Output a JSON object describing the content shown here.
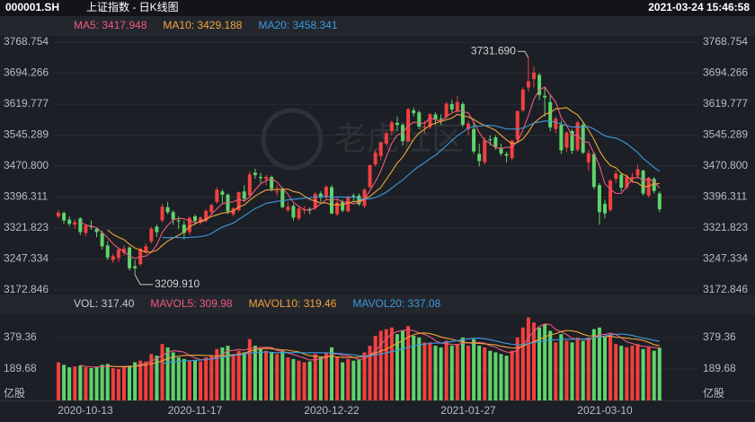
{
  "header": {
    "symbol": "000001.SH",
    "title": "上证指数 - 日K线图",
    "datetime": "2021-03-24 15:46:58"
  },
  "watermark": "老虎社区",
  "chart_data": [
    {
      "type": "candlestick",
      "up_color": "#f2403f",
      "down_color": "#5fd36c",
      "grid": true,
      "ylim": [
        3162,
        3784
      ],
      "yticks": [
        3768.754,
        3694.266,
        3619.777,
        3545.289,
        {
          "value": 3470.8,
          "label": "3470.800"
        },
        3396.311,
        3321.823,
        3247.334,
        3172.846
      ],
      "indicators": [
        {
          "label": "MA5: 3417.948",
          "period": 5,
          "color": "#ee5a7c"
        },
        {
          "label": "MA10: 3429.188",
          "period": 10,
          "color": "#f0a43a"
        },
        {
          "label": "MA20: 3458.341",
          "period": 20,
          "color": "#3d9be0"
        }
      ],
      "high_label": "3731.690",
      "low_label": "3209.910",
      "open": [
        3350,
        3358,
        3342,
        3330,
        3345,
        3310,
        3326,
        3320,
        3310,
        3280,
        3245,
        3250,
        3262,
        3275,
        3230,
        3235,
        3265,
        3290,
        3325,
        3340,
        3372,
        3360,
        3340,
        3330,
        3312,
        3350,
        3335,
        3340,
        3360,
        3385,
        3410,
        3402,
        3355,
        3365,
        3410,
        3400,
        3455,
        3445,
        3440,
        3445,
        3410,
        3415,
        3365,
        3375,
        3345,
        3365,
        3368,
        3370,
        3405,
        3395,
        3420,
        3355,
        3385,
        3362,
        3400,
        3400,
        3375,
        3420,
        3475,
        3495,
        3525,
        3555,
        3575,
        3570,
        3530,
        3605,
        3600,
        3565,
        3565,
        3595,
        3585,
        3590,
        3620,
        3605,
        3620,
        3560,
        3560,
        3500,
        3480,
        3535,
        3540,
        3515,
        3500,
        3490,
        3535,
        3605,
        3660,
        3680,
        3690,
        3640,
        3625,
        3560,
        3570,
        3515,
        3555,
        3510,
        3570,
        3480,
        3500,
        3425,
        3380,
        3365,
        3440,
        3450,
        3420,
        3440,
        3448,
        3460,
        3400,
        3440,
        3405
      ],
      "high": [
        3365,
        3362,
        3350,
        3342,
        3348,
        3330,
        3340,
        3324,
        3315,
        3290,
        3260,
        3275,
        3280,
        3278,
        3245,
        3275,
        3285,
        3325,
        3330,
        3380,
        3385,
        3365,
        3350,
        3340,
        3350,
        3355,
        3350,
        3368,
        3380,
        3420,
        3415,
        3405,
        3372,
        3410,
        3425,
        3458,
        3465,
        3455,
        3450,
        3448,
        3425,
        3420,
        3385,
        3380,
        3375,
        3375,
        3372,
        3408,
        3410,
        3425,
        3425,
        3390,
        3390,
        3400,
        3405,
        3405,
        3418,
        3475,
        3510,
        3530,
        3555,
        3580,
        3590,
        3575,
        3610,
        3612,
        3605,
        3580,
        3598,
        3600,
        3595,
        3625,
        3630,
        3640,
        3625,
        3580,
        3575,
        3525,
        3540,
        3545,
        3545,
        3525,
        3505,
        3535,
        3605,
        3660,
        3731.69,
        3710,
        3695,
        3660,
        3640,
        3590,
        3580,
        3555,
        3560,
        3580,
        3575,
        3510,
        3505,
        3430,
        3390,
        3440,
        3460,
        3455,
        3450,
        3455,
        3475,
        3462,
        3445,
        3445,
        3410
      ],
      "low": [
        3345,
        3332,
        3326,
        3320,
        3305,
        3302,
        3318,
        3300,
        3270,
        3245,
        3238,
        3240,
        3255,
        3220,
        3209.91,
        3230,
        3260,
        3285,
        3300,
        3335,
        3355,
        3330,
        3320,
        3295,
        3305,
        3330,
        3330,
        3335,
        3355,
        3380,
        3380,
        3355,
        3350,
        3360,
        3385,
        3398,
        3440,
        3430,
        3425,
        3410,
        3400,
        3370,
        3360,
        3340,
        3340,
        3355,
        3355,
        3365,
        3385,
        3390,
        3355,
        3350,
        3360,
        3360,
        3385,
        3375,
        3370,
        3418,
        3470,
        3485,
        3520,
        3545,
        3555,
        3520,
        3528,
        3590,
        3560,
        3550,
        3560,
        3570,
        3570,
        3585,
        3600,
        3600,
        3565,
        3545,
        3500,
        3470,
        3475,
        3520,
        3510,
        3495,
        3480,
        3485,
        3530,
        3600,
        3650,
        3660,
        3630,
        3590,
        3555,
        3550,
        3500,
        3505,
        3500,
        3505,
        3500,
        3460,
        3415,
        3330,
        3345,
        3360,
        3430,
        3410,
        3415,
        3430,
        3440,
        3400,
        3395,
        3405,
        3360
      ],
      "close": [
        3359,
        3340,
        3332,
        3336,
        3312,
        3328,
        3325,
        3312,
        3278,
        3251,
        3254,
        3270,
        3272,
        3225,
        3225,
        3272,
        3278,
        3320,
        3312,
        3373,
        3360,
        3342,
        3338,
        3310,
        3346,
        3339,
        3347,
        3363,
        3377,
        3414,
        3402,
        3362,
        3369,
        3408,
        3392,
        3451,
        3449,
        3442,
        3445,
        3416,
        3410,
        3372,
        3373,
        3347,
        3369,
        3367,
        3366,
        3404,
        3395,
        3421,
        3357,
        3383,
        3364,
        3397,
        3397,
        3379,
        3414,
        3473,
        3503,
        3528,
        3550,
        3576,
        3570,
        3531,
        3608,
        3598,
        3566,
        3566,
        3596,
        3584,
        3584,
        3621,
        3607,
        3625,
        3570,
        3573,
        3506,
        3483,
        3533,
        3534,
        3517,
        3501,
        3496,
        3532,
        3603,
        3655,
        3675,
        3696,
        3642,
        3636,
        3564,
        3585,
        3509,
        3551,
        3508,
        3576,
        3503,
        3502,
        3421,
        3360,
        3357,
        3436,
        3453,
        3419,
        3446,
        3445,
        3463,
        3405,
        3443,
        3411,
        3367
      ]
    },
    {
      "type": "bar",
      "vol_label": "VOL: 317.40",
      "unit": "亿股",
      "ylim": [
        0,
        509
      ],
      "yticks": [
        379.36,
        189.68
      ],
      "indicators": [
        {
          "label": "MAVOL5: 309.98",
          "period": 5,
          "color": "#ee5a7c"
        },
        {
          "label": "MAVOL10: 319.46",
          "period": 10,
          "color": "#f0a43a"
        },
        {
          "label": "MAVOL20: 337.08",
          "period": 20,
          "color": "#3d9be0"
        }
      ],
      "categories": [
        "2020-10-13",
        null,
        null,
        null,
        null,
        null,
        null,
        null,
        null,
        null,
        null,
        null,
        null,
        null,
        null,
        null,
        null,
        null,
        null,
        null,
        null,
        null,
        null,
        null,
        null,
        "2020-11-17",
        null,
        null,
        null,
        null,
        null,
        null,
        null,
        null,
        null,
        null,
        null,
        null,
        null,
        null,
        null,
        null,
        null,
        null,
        null,
        null,
        null,
        null,
        null,
        null,
        "2020-12-22",
        null,
        null,
        null,
        null,
        null,
        null,
        null,
        null,
        null,
        null,
        null,
        null,
        null,
        null,
        null,
        null,
        null,
        null,
        null,
        null,
        null,
        null,
        null,
        null,
        "2021-01-27",
        null,
        null,
        null,
        null,
        null,
        null,
        null,
        null,
        null,
        null,
        null,
        null,
        null,
        null,
        null,
        null,
        null,
        null,
        null,
        null,
        null,
        null,
        null,
        null,
        "2021-03-10",
        null,
        null,
        null,
        null,
        null,
        null,
        null,
        null,
        null,
        null
      ],
      "values": [
        230,
        215,
        200,
        205,
        210,
        200,
        195,
        200,
        215,
        220,
        195,
        190,
        205,
        210,
        230,
        240,
        235,
        280,
        270,
        340,
        320,
        290,
        260,
        250,
        240,
        245,
        235,
        260,
        270,
        310,
        320,
        330,
        280,
        300,
        290,
        370,
        330,
        310,
        300,
        290,
        280,
        300,
        260,
        250,
        240,
        230,
        235,
        280,
        260,
        290,
        320,
        260,
        230,
        250,
        240,
        250,
        290,
        330,
        390,
        420,
        430,
        440,
        400,
        420,
        450,
        390,
        380,
        350,
        350,
        330,
        320,
        360,
        330,
        340,
        380,
        330,
        370,
        330,
        320,
        300,
        290,
        280,
        270,
        300,
        380,
        440,
        500,
        470,
        440,
        460,
        420,
        350,
        400,
        360,
        350,
        380,
        360,
        380,
        430,
        440,
        380,
        400,
        340,
        330,
        320,
        330,
        340,
        310,
        320,
        300,
        317.4
      ]
    }
  ]
}
